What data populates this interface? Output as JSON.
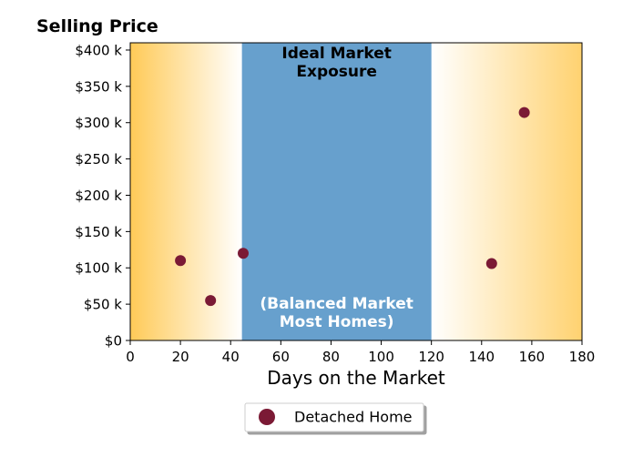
{
  "chart_data": {
    "type": "scatter",
    "ylabel": "Selling Price",
    "xlabel": "Days on the Market",
    "xlim": [
      0,
      180
    ],
    "ylim": [
      0,
      410
    ],
    "x_ticks": [
      0,
      20,
      40,
      60,
      80,
      100,
      120,
      140,
      160,
      180
    ],
    "y_ticks": [
      0,
      50,
      100,
      150,
      200,
      250,
      300,
      350,
      400
    ],
    "y_tick_labels": [
      "$0",
      "$50 k",
      "$100 k",
      "$150 k",
      "$200 k",
      "$250 k",
      "$300 k",
      "$350 k",
      "$400 k"
    ],
    "series": [
      {
        "name": "Detached Home",
        "color": "#7b1a35",
        "points": [
          {
            "x": 20,
            "y": 110
          },
          {
            "x": 32,
            "y": 55
          },
          {
            "x": 45,
            "y": 120
          },
          {
            "x": 144,
            "y": 106
          },
          {
            "x": 157,
            "y": 314
          }
        ]
      }
    ],
    "bands": [
      {
        "x_start": 44.5,
        "x_end": 120,
        "color": "#67a0cd",
        "top_label": [
          "Ideal Market",
          "Exposure"
        ],
        "bottom_label": [
          "(Balanced Market",
          "Most Homes)"
        ]
      }
    ],
    "gradient_color": "#ffca57",
    "legend_position": "bottom-center",
    "grid": false
  }
}
